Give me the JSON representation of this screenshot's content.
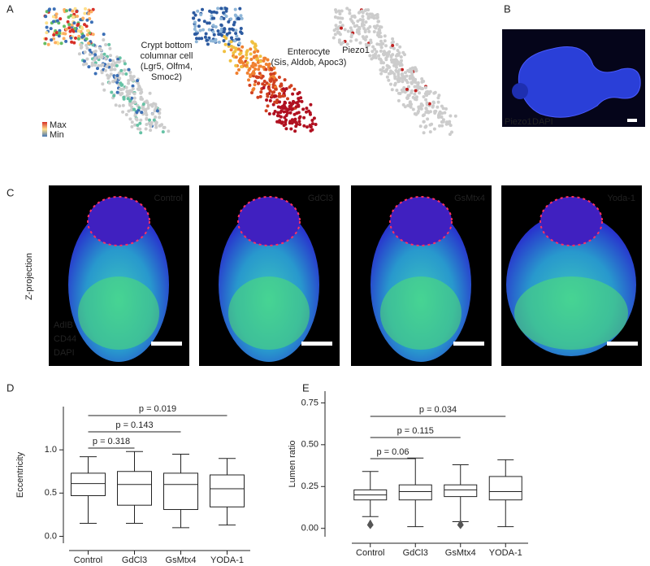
{
  "panel_labels": [
    "A",
    "B",
    "C",
    "D",
    "E"
  ],
  "umap": {
    "titles": [
      [
        "Crypt bottom",
        "columnar cell",
        "(Lgr5, Olfm4,",
        "Smoc2)"
      ],
      [
        "Enterocyte",
        "(Sis, Aldob, Apoc3)"
      ],
      [
        "Piezo1"
      ]
    ],
    "legend": [
      "Max",
      "Min"
    ]
  },
  "staining": {
    "b_channels": [
      "Piezo1",
      "DAPI"
    ],
    "c_conditions": [
      "Control",
      "GdCl3",
      "GsMtx4",
      "Yoda-1"
    ],
    "c_axis_label": "Z-projection",
    "c_channels": [
      "AdIB",
      "CD44",
      "DAPI"
    ]
  },
  "chart_data": [
    {
      "type": "box",
      "y_label": "Eccentricity",
      "categories": [
        "Control",
        "GdCl3",
        "GsMtx4",
        "YODA-1"
      ],
      "boxes": [
        {
          "low": 0.15,
          "q1": 0.47,
          "median": 0.61,
          "q3": 0.73,
          "high": 0.92
        },
        {
          "low": 0.15,
          "q1": 0.36,
          "median": 0.6,
          "q3": 0.75,
          "high": 0.98
        },
        {
          "low": 0.1,
          "q1": 0.31,
          "median": 0.6,
          "q3": 0.73,
          "high": 0.95
        },
        {
          "low": 0.13,
          "q1": 0.34,
          "median": 0.55,
          "q3": 0.71,
          "high": 0.9
        }
      ],
      "outliers": [
        [],
        [],
        [],
        []
      ],
      "ylim": [
        -0.08,
        1.5
      ],
      "yticks": [
        {
          "value": 0,
          "label": "0.0"
        },
        0.5,
        {
          "value": 1,
          "label": "1.0"
        }
      ],
      "annotations": [
        {
          "text": "p = 0.318",
          "between": [
            "Control",
            "GdCl3"
          ]
        },
        {
          "text": "p = 0.143",
          "between": [
            "Control",
            "GsMtx4"
          ]
        },
        {
          "text": "p = 0.019",
          "between": [
            "Control",
            "YODA-1"
          ]
        }
      ]
    },
    {
      "type": "box",
      "y_label": "Lumen ratio",
      "categories": [
        "Control",
        "GdCl3",
        "GsMtx4",
        "YODA-1"
      ],
      "boxes": [
        {
          "low": 0.07,
          "q1": 0.17,
          "median": 0.2,
          "q3": 0.23,
          "high": 0.34
        },
        {
          "low": 0.01,
          "q1": 0.17,
          "median": 0.22,
          "q3": 0.26,
          "high": 0.42
        },
        {
          "low": 0.04,
          "q1": 0.19,
          "median": 0.23,
          "q3": 0.26,
          "high": 0.38
        },
        {
          "low": 0.01,
          "q1": 0.17,
          "median": 0.22,
          "q3": 0.31,
          "high": 0.41
        }
      ],
      "outliers": [
        [
          0.02
        ],
        [],
        [
          0.02
        ],
        []
      ],
      "ylim": [
        -0.05,
        0.82
      ],
      "yticks": [
        {
          "value": 0,
          "label": "0.00"
        },
        0.25,
        {
          "value": 0.5,
          "label": "0.50"
        },
        {
          "value": 0.75,
          "label": "0.75"
        }
      ],
      "annotations": [
        {
          "text": "p = 0.06",
          "between": [
            "Control",
            "GdCl3"
          ]
        },
        {
          "text": "p = 0.115",
          "between": [
            "Control",
            "GsMtx4"
          ]
        },
        {
          "text": "p = 0.034",
          "between": [
            "Control",
            "YODA-1"
          ]
        }
      ]
    }
  ]
}
